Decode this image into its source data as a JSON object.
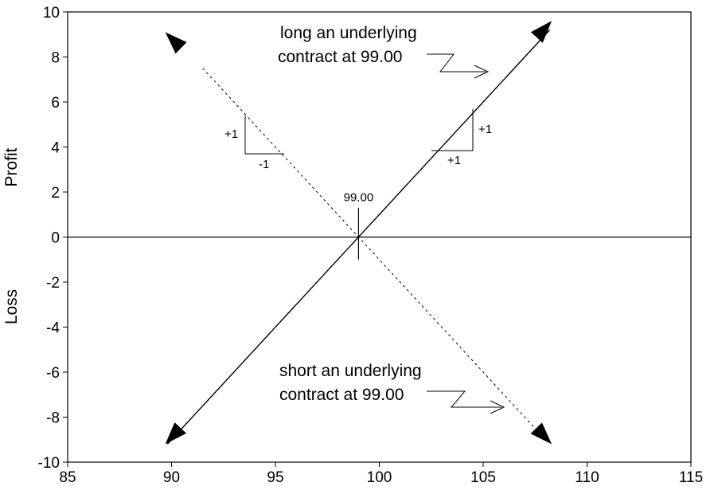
{
  "chart_data": {
    "type": "line",
    "xlim": [
      85,
      115
    ],
    "ylim": [
      -10,
      10
    ],
    "x_ticks": [
      "85",
      "90",
      "95",
      "100",
      "105",
      "110",
      "115"
    ],
    "y_ticks": [
      "10",
      "8",
      "6",
      "4",
      "2",
      "0",
      "-2",
      "-4",
      "-6",
      "-8",
      "-10"
    ],
    "y_label_upper": "Profit",
    "y_label_lower": "Loss",
    "strike_label": "99.00",
    "grid": false,
    "series": [
      {
        "style": "solid",
        "x": [
          89.8,
          108.2
        ],
        "y": [
          -9.2,
          9.2
        ]
      },
      {
        "style": "dashed",
        "x": [
          91.5,
          107.5
        ],
        "y": [
          7.5,
          -8.5
        ]
      }
    ],
    "annotations": {
      "long_line1": "long an underlying",
      "long_line2": "contract at 99.00",
      "short_line1": "short an underlying",
      "short_line2": "contract at 99.00",
      "long_rise": "+1",
      "long_run": "+1",
      "short_rise": "+1",
      "short_run": "-1"
    }
  }
}
